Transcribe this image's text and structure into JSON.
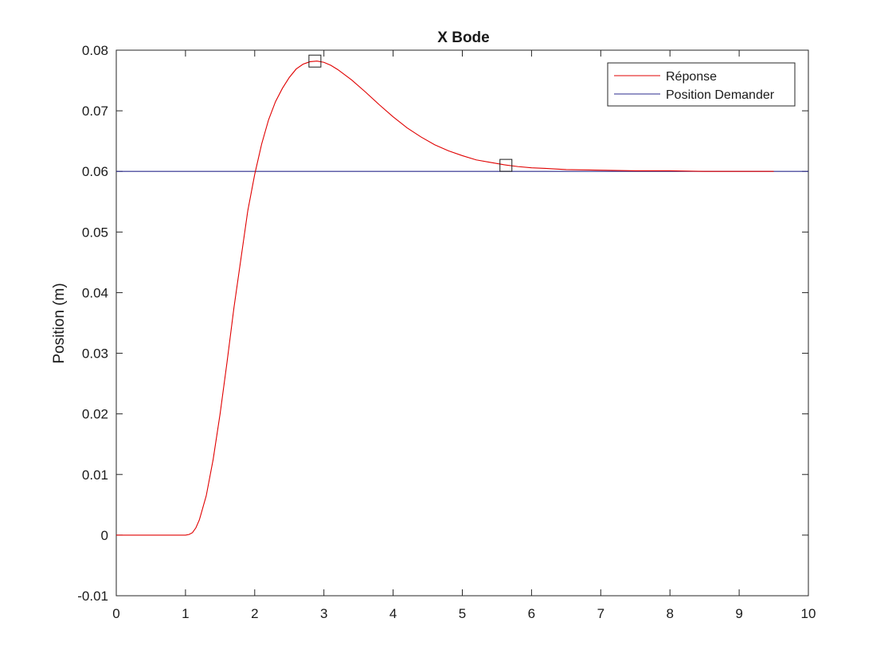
{
  "chart_data": {
    "type": "line",
    "title": "X Bode",
    "xlabel": "",
    "ylabel": "Position (m)",
    "xlim": [
      0,
      10
    ],
    "ylim": [
      -0.01,
      0.08
    ],
    "xticks": [
      0,
      1,
      2,
      3,
      4,
      5,
      6,
      7,
      8,
      9,
      10
    ],
    "xtick_labels": [
      "0",
      "1",
      "2",
      "3",
      "4",
      "5",
      "6",
      "7",
      "8",
      "9",
      "10"
    ],
    "yticks": [
      -0.01,
      0,
      0.01,
      0.02,
      0.03,
      0.04,
      0.05,
      0.06,
      0.07,
      0.08
    ],
    "ytick_labels": [
      "-0.01",
      "0",
      "0.01",
      "0.02",
      "0.03",
      "0.04",
      "0.05",
      "0.06",
      "0.07",
      "0.08"
    ],
    "grid": false,
    "legend_position": "top-right",
    "series": [
      {
        "name": "Réponse",
        "color": "#e00000",
        "x": [
          0,
          1.0,
          1.05,
          1.1,
          1.15,
          1.2,
          1.3,
          1.4,
          1.5,
          1.6,
          1.7,
          1.8,
          1.9,
          2.0,
          2.1,
          2.2,
          2.3,
          2.4,
          2.5,
          2.6,
          2.7,
          2.8,
          2.9,
          3.0,
          3.1,
          3.2,
          3.4,
          3.6,
          3.8,
          4.0,
          4.2,
          4.4,
          4.6,
          4.8,
          5.0,
          5.2,
          5.4,
          5.6,
          5.8,
          6.0,
          6.2,
          6.5,
          7.0,
          7.5,
          8.0,
          8.5,
          9.0,
          9.5
        ],
        "y": [
          0,
          0,
          0.0001,
          0.0004,
          0.0012,
          0.0025,
          0.0065,
          0.0125,
          0.02,
          0.0285,
          0.0375,
          0.0455,
          0.0535,
          0.0595,
          0.0645,
          0.0685,
          0.0715,
          0.0737,
          0.0755,
          0.0769,
          0.0777,
          0.0781,
          0.0782,
          0.078,
          0.0775,
          0.0768,
          0.0751,
          0.0731,
          0.071,
          0.069,
          0.0672,
          0.0657,
          0.0644,
          0.0634,
          0.0626,
          0.0619,
          0.0615,
          0.0611,
          0.0608,
          0.0606,
          0.0605,
          0.0603,
          0.0602,
          0.0601,
          0.0601,
          0.06,
          0.06,
          0.06
        ]
      },
      {
        "name": "Position Demander",
        "color": "#2a2a8c",
        "x": [
          0,
          10
        ],
        "y": [
          0.06,
          0.06
        ]
      }
    ],
    "markers": [
      {
        "x": 2.87,
        "y": 0.0782,
        "shape": "square"
      },
      {
        "x": 5.63,
        "y": 0.061,
        "shape": "square"
      }
    ]
  }
}
